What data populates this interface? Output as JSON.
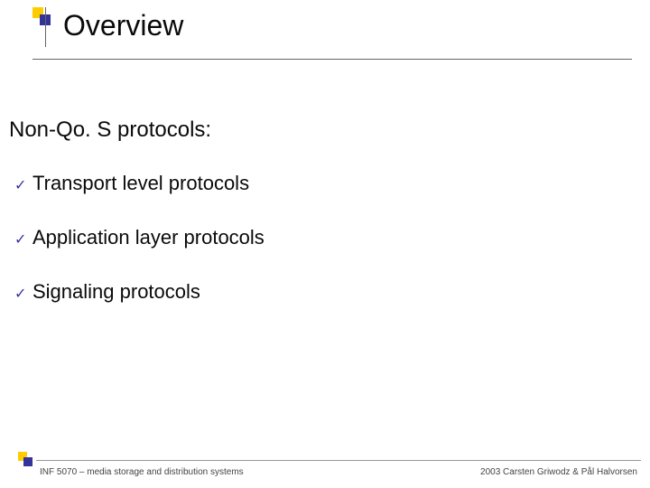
{
  "colors": {
    "text": "#0a0a0a",
    "check": "#333399",
    "art_yellow": "#ffcc00",
    "art_blue": "#333399",
    "title_line": "#666666",
    "footer_line": "#999999",
    "footer_text": "#444444",
    "background": "#ffffff"
  },
  "title": "Overview",
  "section_heading": "Non-Qo. S protocols:",
  "bullets": [
    "Transport level protocols",
    "Application layer protocols",
    "Signaling protocols"
  ],
  "footer": {
    "left": "INF 5070 – media storage and distribution systems",
    "right": "2003  Carsten Griwodz & Pål Halvorsen"
  },
  "typography": {
    "title_fontsize_pt": 32,
    "section_heading_fontsize_pt": 24,
    "bullet_fontsize_pt": 22,
    "footer_fontsize_pt": 10,
    "font_family": "Verdana"
  }
}
